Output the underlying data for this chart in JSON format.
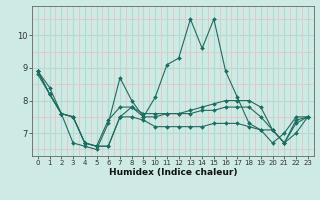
{
  "xlabel": "Humidex (Indice chaleur)",
  "background_color": "#cdeae4",
  "grid_color_major": "#b8d8d2",
  "grid_color_minor": "#e8c8c8",
  "line_color": "#1a6e60",
  "x_values": [
    0,
    1,
    2,
    3,
    4,
    5,
    6,
    7,
    8,
    9,
    10,
    11,
    12,
    13,
    14,
    15,
    16,
    17,
    18,
    19,
    20,
    21,
    22,
    23
  ],
  "lines": [
    [
      8.9,
      8.4,
      7.6,
      6.7,
      6.6,
      6.5,
      7.3,
      8.7,
      8.0,
      7.5,
      8.1,
      9.1,
      9.3,
      10.5,
      9.6,
      10.5,
      8.9,
      8.1,
      7.3,
      7.1,
      6.7,
      7.0,
      7.5,
      7.5
    ],
    [
      8.9,
      8.2,
      7.6,
      7.5,
      6.7,
      6.6,
      6.6,
      7.5,
      7.8,
      7.5,
      7.5,
      7.6,
      7.6,
      7.7,
      7.8,
      7.9,
      8.0,
      8.0,
      8.0,
      7.8,
      7.1,
      6.7,
      7.4,
      7.5
    ],
    [
      8.8,
      8.2,
      7.6,
      7.5,
      6.7,
      6.6,
      6.6,
      7.5,
      7.5,
      7.4,
      7.2,
      7.2,
      7.2,
      7.2,
      7.2,
      7.3,
      7.3,
      7.3,
      7.2,
      7.1,
      7.1,
      6.7,
      7.0,
      7.5
    ],
    [
      8.9,
      8.2,
      7.6,
      7.5,
      6.7,
      6.6,
      7.4,
      7.8,
      7.8,
      7.6,
      7.6,
      7.6,
      7.6,
      7.6,
      7.7,
      7.7,
      7.8,
      7.8,
      7.8,
      7.5,
      7.1,
      6.7,
      7.3,
      7.5
    ]
  ],
  "ylim": [
    6.3,
    10.9
  ],
  "yticks": [
    7,
    8,
    9,
    10
  ],
  "xlim": [
    -0.5,
    23.5
  ],
  "xticks": [
    0,
    1,
    2,
    3,
    4,
    5,
    6,
    7,
    8,
    9,
    10,
    11,
    12,
    13,
    14,
    15,
    16,
    17,
    18,
    19,
    20,
    21,
    22,
    23
  ]
}
